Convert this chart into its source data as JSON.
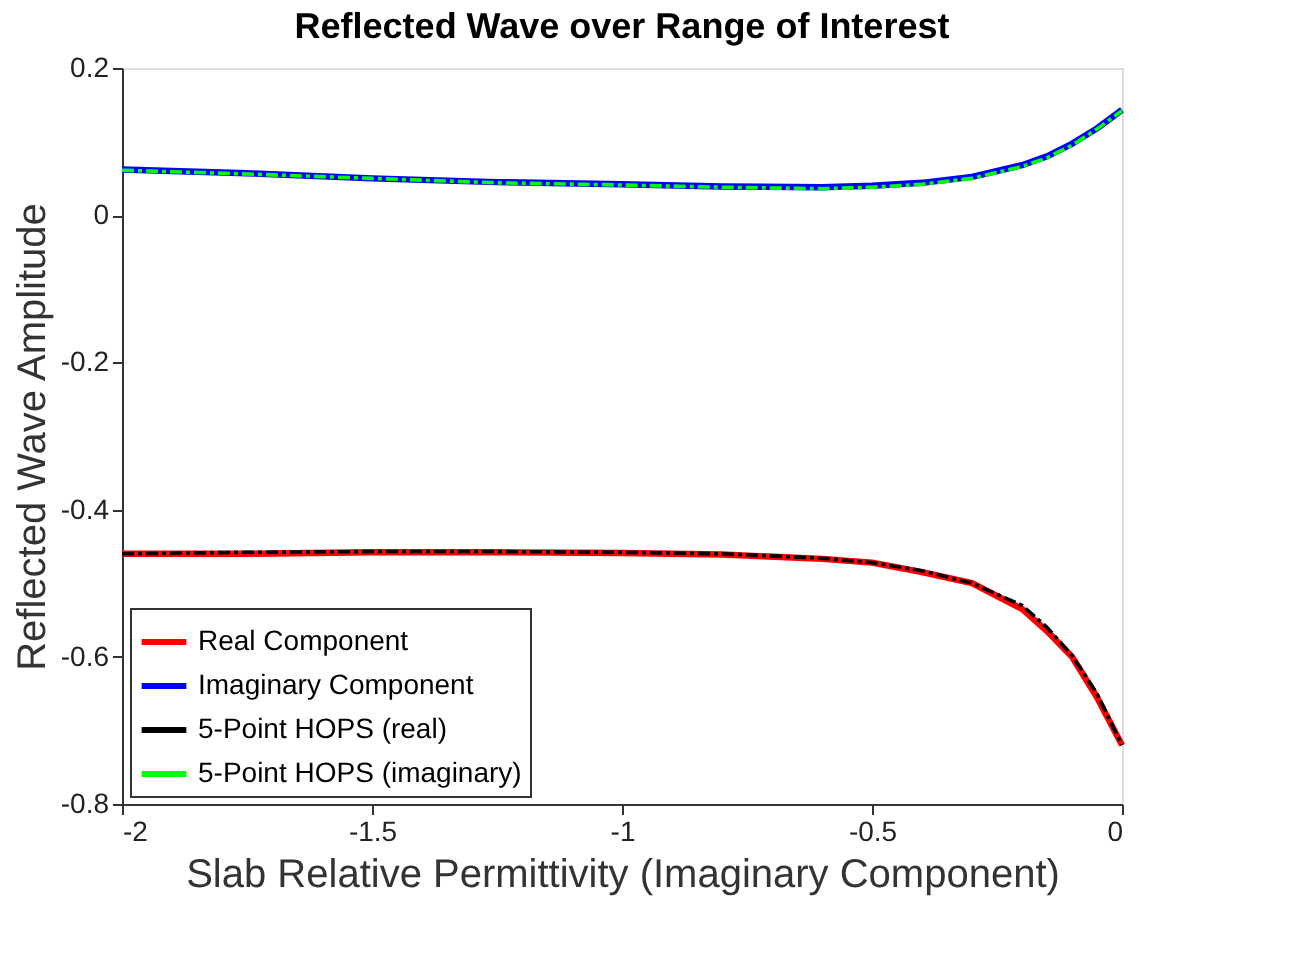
{
  "chart_data": {
    "type": "line",
    "title": "Reflected Wave over Range of Interest",
    "xlabel": "Slab Relative Permittivity (Imaginary Component)",
    "ylabel": "Reflected Wave Amplitude",
    "x": [
      -2,
      -1.75,
      -1.5,
      -1.25,
      -1,
      -0.8,
      -0.6,
      -0.5,
      -0.4,
      -0.3,
      -0.2,
      -0.15,
      -0.1,
      -0.05,
      0
    ],
    "series": [
      {
        "name": "Real Component",
        "color": "#ff0000",
        "line_style": "solid",
        "values": [
          -0.46,
          -0.46,
          -0.458,
          -0.458,
          -0.459,
          -0.461,
          -0.467,
          -0.472,
          -0.485,
          -0.5,
          -0.535,
          -0.565,
          -0.6,
          -0.655,
          -0.72
        ]
      },
      {
        "name": "Imaginary Component",
        "color": "#0000ff",
        "line_style": "solid",
        "values": [
          0.062,
          0.057,
          0.05,
          0.045,
          0.042,
          0.039,
          0.038,
          0.04,
          0.044,
          0.052,
          0.068,
          0.08,
          0.097,
          0.118,
          0.143
        ]
      },
      {
        "name": "5-Point HOPS (real)",
        "color": "#000000",
        "line_style": "dashed",
        "values": [
          -0.46,
          -0.458,
          -0.457,
          -0.457,
          -0.458,
          -0.46,
          -0.466,
          -0.472,
          -0.483,
          -0.5,
          -0.53,
          -0.56,
          -0.598,
          -0.65,
          -0.72
        ]
      },
      {
        "name": "5-Point HOPS (imaginary)",
        "color": "#00ff00",
        "line_style": "dashed",
        "values": [
          0.061,
          0.056,
          0.05,
          0.044,
          0.041,
          0.038,
          0.036,
          0.038,
          0.042,
          0.05,
          0.066,
          0.078,
          0.095,
          0.117,
          0.142
        ]
      }
    ],
    "xlim": [
      -2,
      0
    ],
    "xticks": [
      -2,
      -1.5,
      -1,
      -0.5,
      0
    ],
    "ylim": [
      -0.8,
      0.2
    ],
    "yticks": [
      -0.8,
      -0.6,
      -0.4,
      -0.2,
      0,
      0.2
    ],
    "grid": false,
    "legend": "bottom left",
    "marker": "none"
  }
}
